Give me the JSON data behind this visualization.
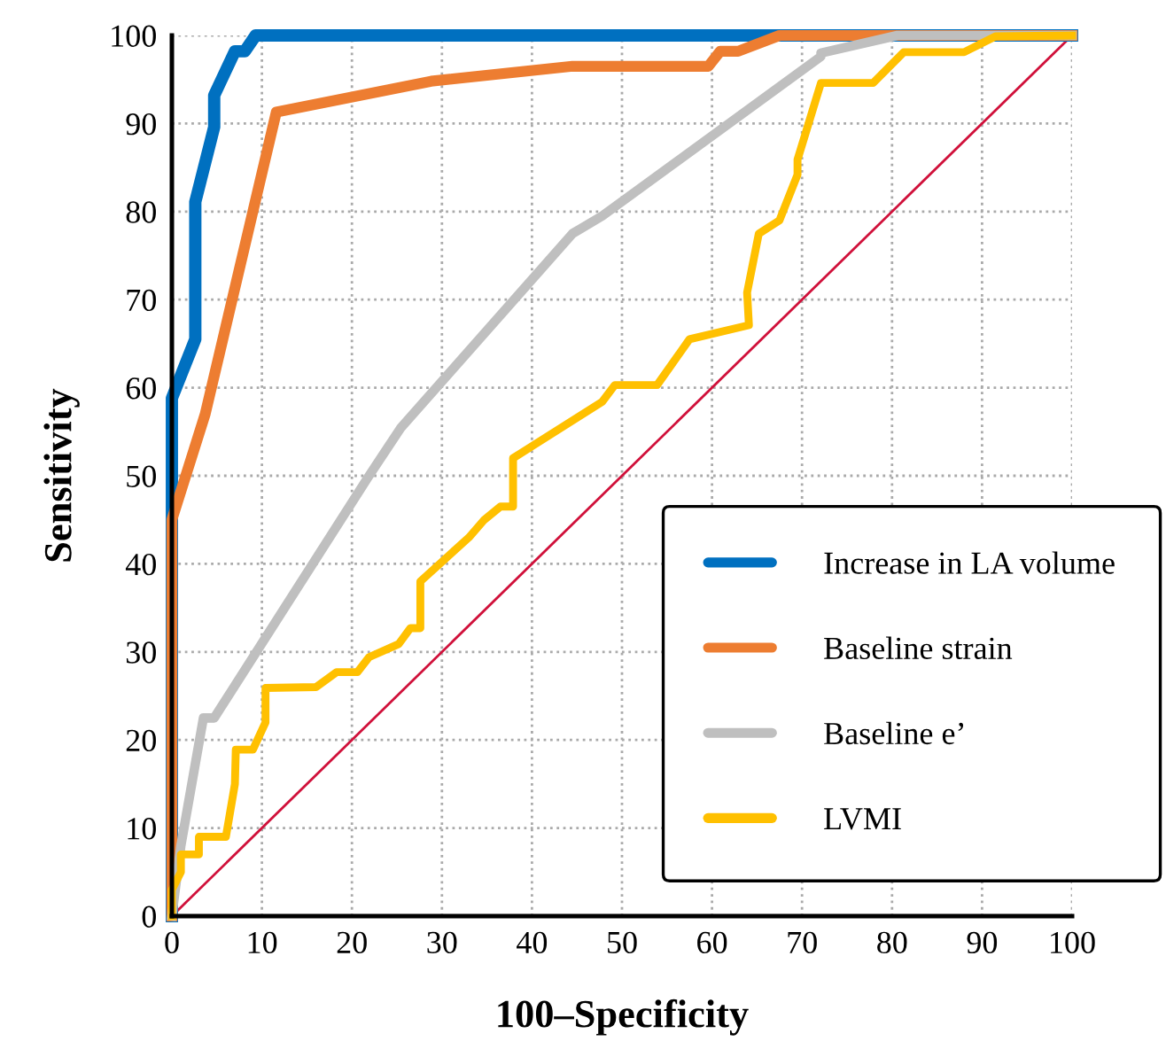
{
  "chart_data": {
    "type": "line",
    "xlabel": "100–Specificity",
    "ylabel": "Sensitivity",
    "xlim": [
      0,
      100
    ],
    "ylim": [
      0,
      100
    ],
    "xticks": [
      0,
      10,
      20,
      30,
      40,
      50,
      60,
      70,
      80,
      90,
      100
    ],
    "yticks": [
      0,
      10,
      20,
      30,
      40,
      50,
      60,
      70,
      80,
      90,
      100
    ],
    "grid": true,
    "legend": "bottom right",
    "marker": "none",
    "line_style": "solid",
    "series": [
      {
        "name": "Increase in LA volume",
        "color": "#0070c0",
        "x": [
          0,
          0,
          2.6,
          2.6,
          4.7,
          4.7,
          7,
          8.1,
          9.3,
          100
        ],
        "values": [
          0,
          58.8,
          65.5,
          81.1,
          89.6,
          93.2,
          98.2,
          98.2,
          100,
          100
        ]
      },
      {
        "name": "Baseline strain",
        "color": "#ed7d31",
        "x": [
          0,
          0,
          3.7,
          11.6,
          28.8,
          44.5,
          59.6,
          60.9,
          62.9,
          67.5,
          100
        ],
        "values": [
          0,
          45,
          57,
          91.3,
          94.8,
          96.5,
          96.5,
          98.2,
          98.2,
          100,
          100
        ]
      },
      {
        "name": "Baseline e’",
        "color": "#bfbfbf",
        "x": [
          0,
          1,
          3.5,
          4.7,
          21.9,
          25.4,
          44.5,
          47.8,
          72.1,
          72.1,
          80.6,
          100
        ],
        "values": [
          0,
          8,
          22.5,
          22.5,
          50,
          55.4,
          77.5,
          79.5,
          97.6,
          98,
          100,
          100
        ]
      },
      {
        "name": "LVMI",
        "color": "#ffc000",
        "x": [
          0,
          0,
          1,
          1,
          3,
          3,
          6,
          7,
          7.1,
          9,
          10.4,
          10.4,
          16,
          18.3,
          20.6,
          21.9,
          25.2,
          26.5,
          27.6,
          27.6,
          33,
          34.7,
          36.5,
          37.9,
          37.9,
          47.8,
          49.2,
          53.9,
          57.5,
          64.1,
          63.9,
          65.2,
          67.5,
          69.5,
          69.5,
          72.1,
          77.9,
          81.3,
          88,
          91.5,
          100
        ],
        "values": [
          0,
          3,
          5,
          7,
          7,
          9,
          9,
          15,
          18.9,
          18.9,
          22,
          25.9,
          26,
          27.7,
          27.7,
          29.4,
          30.9,
          32.7,
          32.7,
          38,
          43,
          45,
          46.5,
          46.5,
          52,
          58.4,
          60.3,
          60.3,
          65.5,
          67.1,
          70.8,
          77.5,
          79,
          84.2,
          85.9,
          94.6,
          94.6,
          98.1,
          98.1,
          99.9,
          100
        ]
      },
      {
        "color": "#d0103a",
        "x": [
          0,
          100
        ],
        "values": [
          0,
          100
        ]
      }
    ]
  }
}
